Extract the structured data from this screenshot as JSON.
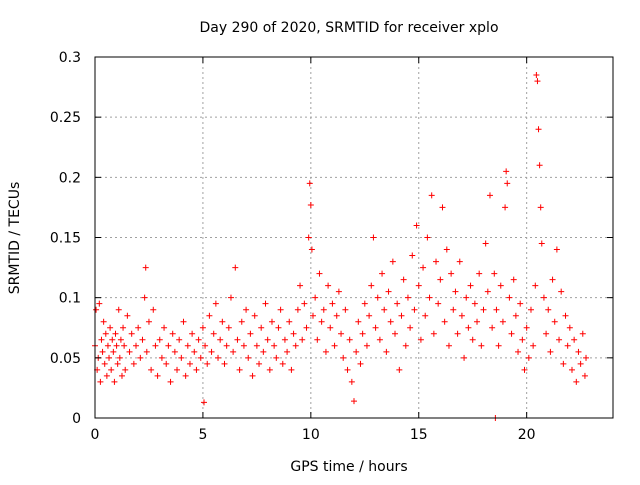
{
  "chart_data": {
    "type": "scatter",
    "title": "Day 290 of 2020, SRMTID for receiver xplo",
    "xlabel": "GPS time / hours",
    "ylabel": "SRMTID / TECUs",
    "xlim": [
      0,
      24
    ],
    "ylim": [
      0,
      0.3
    ],
    "grid": true,
    "marker": "+",
    "series_color": "#ff0000",
    "x_ticks": [
      {
        "value": 0,
        "label": "0"
      },
      {
        "value": 5,
        "label": "5"
      },
      {
        "value": 10,
        "label": "10"
      },
      {
        "value": 15,
        "label": "15"
      },
      {
        "value": 20,
        "label": "20"
      }
    ],
    "y_ticks": [
      {
        "value": 0,
        "label": "0"
      },
      {
        "value": 0.05,
        "label": "0.05"
      },
      {
        "value": 0.1,
        "label": "0.1"
      },
      {
        "value": 0.15,
        "label": "0.15"
      },
      {
        "value": 0.2,
        "label": "0.2"
      },
      {
        "value": 0.25,
        "label": "0.25"
      },
      {
        "value": 0.3,
        "label": "0.3"
      }
    ],
    "series": [
      {
        "name": "SRMTID",
        "points": [
          [
            0.0,
            0.06
          ],
          [
            0.05,
            0.09
          ],
          [
            0.1,
            0.04
          ],
          [
            0.15,
            0.05
          ],
          [
            0.2,
            0.095
          ],
          [
            0.25,
            0.03
          ],
          [
            0.3,
            0.065
          ],
          [
            0.35,
            0.055
          ],
          [
            0.4,
            0.08
          ],
          [
            0.45,
            0.045
          ],
          [
            0.5,
            0.07
          ],
          [
            0.55,
            0.035
          ],
          [
            0.6,
            0.06
          ],
          [
            0.65,
            0.05
          ],
          [
            0.7,
            0.075
          ],
          [
            0.75,
            0.04
          ],
          [
            0.8,
            0.065
          ],
          [
            0.85,
            0.055
          ],
          [
            0.9,
            0.03
          ],
          [
            0.95,
            0.07
          ],
          [
            1.0,
            0.06
          ],
          [
            1.05,
            0.045
          ],
          [
            1.1,
            0.09
          ],
          [
            1.15,
            0.05
          ],
          [
            1.2,
            0.065
          ],
          [
            1.25,
            0.035
          ],
          [
            1.3,
            0.075
          ],
          [
            1.35,
            0.06
          ],
          [
            1.4,
            0.04
          ],
          [
            1.5,
            0.085
          ],
          [
            1.6,
            0.055
          ],
          [
            1.7,
            0.07
          ],
          [
            1.8,
            0.045
          ],
          [
            1.9,
            0.06
          ],
          [
            2.0,
            0.075
          ],
          [
            2.1,
            0.05
          ],
          [
            2.2,
            0.065
          ],
          [
            2.3,
            0.1
          ],
          [
            2.35,
            0.125
          ],
          [
            2.4,
            0.055
          ],
          [
            2.5,
            0.08
          ],
          [
            2.6,
            0.04
          ],
          [
            2.7,
            0.09
          ],
          [
            2.8,
            0.06
          ],
          [
            2.9,
            0.035
          ],
          [
            3.0,
            0.065
          ],
          [
            3.1,
            0.05
          ],
          [
            3.2,
            0.075
          ],
          [
            3.3,
            0.045
          ],
          [
            3.4,
            0.06
          ],
          [
            3.5,
            0.03
          ],
          [
            3.6,
            0.07
          ],
          [
            3.7,
            0.055
          ],
          [
            3.8,
            0.04
          ],
          [
            3.9,
            0.065
          ],
          [
            4.0,
            0.05
          ],
          [
            4.1,
            0.08
          ],
          [
            4.2,
            0.035
          ],
          [
            4.3,
            0.06
          ],
          [
            4.4,
            0.045
          ],
          [
            4.5,
            0.07
          ],
          [
            4.6,
            0.055
          ],
          [
            4.7,
            0.04
          ],
          [
            4.8,
            0.065
          ],
          [
            4.9,
            0.05
          ],
          [
            5.0,
            0.075
          ],
          [
            5.05,
            0.013
          ],
          [
            5.1,
            0.06
          ],
          [
            5.2,
            0.045
          ],
          [
            5.3,
            0.085
          ],
          [
            5.4,
            0.055
          ],
          [
            5.5,
            0.07
          ],
          [
            5.6,
            0.095
          ],
          [
            5.7,
            0.05
          ],
          [
            5.8,
            0.065
          ],
          [
            5.9,
            0.08
          ],
          [
            6.0,
            0.045
          ],
          [
            6.1,
            0.06
          ],
          [
            6.2,
            0.075
          ],
          [
            6.3,
            0.1
          ],
          [
            6.4,
            0.055
          ],
          [
            6.5,
            0.125
          ],
          [
            6.6,
            0.065
          ],
          [
            6.7,
            0.04
          ],
          [
            6.8,
            0.08
          ],
          [
            6.9,
            0.06
          ],
          [
            7.0,
            0.09
          ],
          [
            7.1,
            0.05
          ],
          [
            7.2,
            0.07
          ],
          [
            7.3,
            0.035
          ],
          [
            7.4,
            0.085
          ],
          [
            7.5,
            0.06
          ],
          [
            7.6,
            0.045
          ],
          [
            7.7,
            0.075
          ],
          [
            7.8,
            0.055
          ],
          [
            7.9,
            0.095
          ],
          [
            8.0,
            0.065
          ],
          [
            8.1,
            0.04
          ],
          [
            8.2,
            0.08
          ],
          [
            8.3,
            0.06
          ],
          [
            8.4,
            0.05
          ],
          [
            8.5,
            0.075
          ],
          [
            8.6,
            0.09
          ],
          [
            8.7,
            0.045
          ],
          [
            8.8,
            0.065
          ],
          [
            8.9,
            0.055
          ],
          [
            9.0,
            0.08
          ],
          [
            9.1,
            0.04
          ],
          [
            9.2,
            0.07
          ],
          [
            9.3,
            0.06
          ],
          [
            9.4,
            0.09
          ],
          [
            9.5,
            0.11
          ],
          [
            9.6,
            0.065
          ],
          [
            9.7,
            0.095
          ],
          [
            9.8,
            0.075
          ],
          [
            9.9,
            0.15
          ],
          [
            9.95,
            0.195
          ],
          [
            10.0,
            0.177
          ],
          [
            10.05,
            0.14
          ],
          [
            10.1,
            0.085
          ],
          [
            10.2,
            0.1
          ],
          [
            10.3,
            0.065
          ],
          [
            10.4,
            0.12
          ],
          [
            10.5,
            0.08
          ],
          [
            10.6,
            0.09
          ],
          [
            10.7,
            0.055
          ],
          [
            10.8,
            0.11
          ],
          [
            10.9,
            0.075
          ],
          [
            11.0,
            0.095
          ],
          [
            11.1,
            0.06
          ],
          [
            11.2,
            0.085
          ],
          [
            11.3,
            0.105
          ],
          [
            11.4,
            0.07
          ],
          [
            11.5,
            0.05
          ],
          [
            11.6,
            0.09
          ],
          [
            11.7,
            0.04
          ],
          [
            11.8,
            0.065
          ],
          [
            11.9,
            0.03
          ],
          [
            12.0,
            0.014
          ],
          [
            12.1,
            0.055
          ],
          [
            12.2,
            0.08
          ],
          [
            12.3,
            0.045
          ],
          [
            12.4,
            0.07
          ],
          [
            12.5,
            0.095
          ],
          [
            12.6,
            0.06
          ],
          [
            12.7,
            0.085
          ],
          [
            12.8,
            0.11
          ],
          [
            12.9,
            0.15
          ],
          [
            13.0,
            0.075
          ],
          [
            13.1,
            0.1
          ],
          [
            13.2,
            0.065
          ],
          [
            13.3,
            0.12
          ],
          [
            13.4,
            0.09
          ],
          [
            13.5,
            0.055
          ],
          [
            13.6,
            0.105
          ],
          [
            13.7,
            0.08
          ],
          [
            13.8,
            0.13
          ],
          [
            13.9,
            0.07
          ],
          [
            14.0,
            0.095
          ],
          [
            14.1,
            0.04
          ],
          [
            14.2,
            0.085
          ],
          [
            14.3,
            0.115
          ],
          [
            14.4,
            0.06
          ],
          [
            14.5,
            0.1
          ],
          [
            14.6,
            0.075
          ],
          [
            14.7,
            0.135
          ],
          [
            14.8,
            0.09
          ],
          [
            14.9,
            0.16
          ],
          [
            15.0,
            0.11
          ],
          [
            15.1,
            0.065
          ],
          [
            15.2,
            0.125
          ],
          [
            15.3,
            0.085
          ],
          [
            15.4,
            0.15
          ],
          [
            15.5,
            0.1
          ],
          [
            15.6,
            0.185
          ],
          [
            15.7,
            0.07
          ],
          [
            15.8,
            0.13
          ],
          [
            15.9,
            0.095
          ],
          [
            16.0,
            0.115
          ],
          [
            16.1,
            0.175
          ],
          [
            16.2,
            0.08
          ],
          [
            16.3,
            0.14
          ],
          [
            16.4,
            0.06
          ],
          [
            16.5,
            0.12
          ],
          [
            16.6,
            0.09
          ],
          [
            16.7,
            0.105
          ],
          [
            16.8,
            0.07
          ],
          [
            16.9,
            0.13
          ],
          [
            17.0,
            0.085
          ],
          [
            17.1,
            0.05
          ],
          [
            17.2,
            0.1
          ],
          [
            17.3,
            0.075
          ],
          [
            17.4,
            0.11
          ],
          [
            17.5,
            0.065
          ],
          [
            17.6,
            0.095
          ],
          [
            17.7,
            0.08
          ],
          [
            17.8,
            0.12
          ],
          [
            17.9,
            0.06
          ],
          [
            18.0,
            0.09
          ],
          [
            18.1,
            0.145
          ],
          [
            18.2,
            0.105
          ],
          [
            18.3,
            0.185
          ],
          [
            18.4,
            0.075
          ],
          [
            18.5,
            0.12
          ],
          [
            18.55,
            0.0
          ],
          [
            18.6,
            0.09
          ],
          [
            18.7,
            0.06
          ],
          [
            18.8,
            0.11
          ],
          [
            18.9,
            0.08
          ],
          [
            19.0,
            0.175
          ],
          [
            19.05,
            0.205
          ],
          [
            19.1,
            0.195
          ],
          [
            19.2,
            0.1
          ],
          [
            19.3,
            0.07
          ],
          [
            19.4,
            0.115
          ],
          [
            19.5,
            0.085
          ],
          [
            19.6,
            0.055
          ],
          [
            19.7,
            0.095
          ],
          [
            19.8,
            0.065
          ],
          [
            19.9,
            0.04
          ],
          [
            20.0,
            0.075
          ],
          [
            20.1,
            0.05
          ],
          [
            20.2,
            0.09
          ],
          [
            20.3,
            0.06
          ],
          [
            20.4,
            0.11
          ],
          [
            20.45,
            0.285
          ],
          [
            20.5,
            0.28
          ],
          [
            20.55,
            0.24
          ],
          [
            20.6,
            0.21
          ],
          [
            20.65,
            0.175
          ],
          [
            20.7,
            0.145
          ],
          [
            20.8,
            0.1
          ],
          [
            20.9,
            0.07
          ],
          [
            21.0,
            0.09
          ],
          [
            21.1,
            0.055
          ],
          [
            21.2,
            0.115
          ],
          [
            21.3,
            0.08
          ],
          [
            21.4,
            0.14
          ],
          [
            21.5,
            0.065
          ],
          [
            21.6,
            0.105
          ],
          [
            21.7,
            0.045
          ],
          [
            21.8,
            0.085
          ],
          [
            21.9,
            0.06
          ],
          [
            22.0,
            0.075
          ],
          [
            22.1,
            0.04
          ],
          [
            22.2,
            0.065
          ],
          [
            22.3,
            0.03
          ],
          [
            22.4,
            0.055
          ],
          [
            22.5,
            0.045
          ],
          [
            22.6,
            0.07
          ],
          [
            22.7,
            0.035
          ],
          [
            22.75,
            0.05
          ]
        ]
      }
    ]
  }
}
